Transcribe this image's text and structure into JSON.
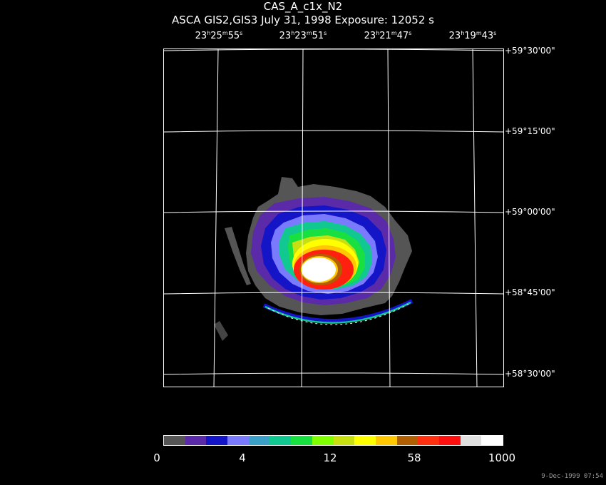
{
  "header": {
    "title": "CAS_A_c1x_N2",
    "subtitle": "ASCA GIS2,GIS3 July 31, 1998 Exposure: 12052 s"
  },
  "ra_labels": [
    {
      "h": "23",
      "m": "25",
      "s": "55"
    },
    {
      "h": "23",
      "m": "23",
      "s": "51"
    },
    {
      "h": "23",
      "m": "21",
      "s": "47"
    },
    {
      "h": "23",
      "m": "19",
      "s": "43"
    }
  ],
  "dec_labels": [
    "+59°30'00\"",
    "+59°15'00\"",
    "+59°00'00\"",
    "+58°45'00\"",
    "+58°30'00\""
  ],
  "colorbar": {
    "labels": [
      "0",
      "4",
      "12",
      "58",
      "1000"
    ],
    "colors": [
      "#555555",
      "#5a2aa8",
      "#1515c8",
      "#7a7aff",
      "#3aa0c8",
      "#10c890",
      "#18e040",
      "#80ff00",
      "#c8e010",
      "#ffff00",
      "#ffc800",
      "#b06000",
      "#ff3010",
      "#ff1010",
      "#e0e0e0",
      "#ffffff"
    ]
  },
  "timestamp": "9-Dec-1999 07:54"
}
